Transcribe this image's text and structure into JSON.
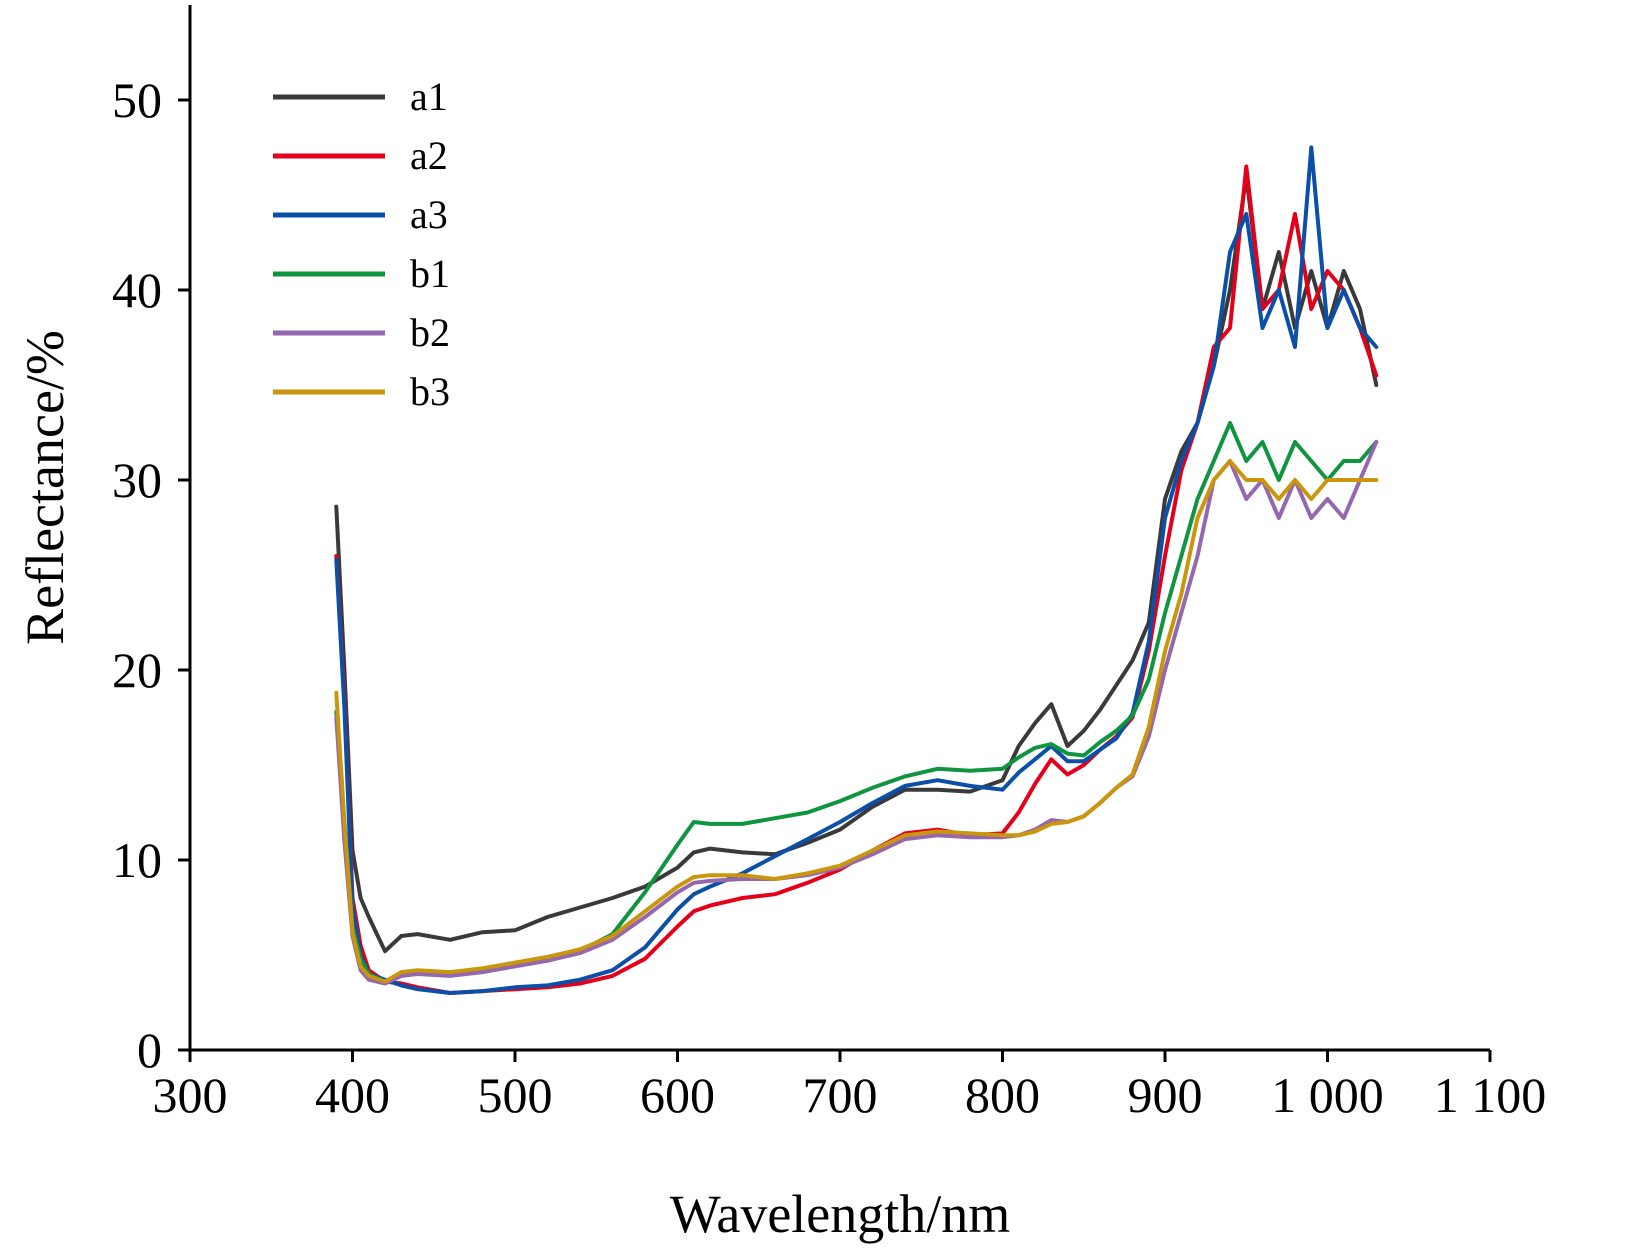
{
  "chart_data": {
    "type": "line",
    "xlabel": "Wavelength/nm",
    "ylabel": "Reflectance/%",
    "xlim": [
      300,
      1100
    ],
    "ylim": [
      0,
      55
    ],
    "x_ticks": [
      300,
      400,
      500,
      600,
      700,
      800,
      900,
      1000,
      1100
    ],
    "x_tick_labels": [
      "300",
      "400",
      "500",
      "600",
      "700",
      "800",
      "900",
      "1 000",
      "1 100"
    ],
    "y_ticks": [
      0,
      10,
      20,
      30,
      40,
      50
    ],
    "y_tick_labels": [
      "0",
      "10",
      "20",
      "30",
      "40",
      "50"
    ],
    "grid": false,
    "legend_position": "top-left",
    "x": [
      390,
      395,
      400,
      405,
      410,
      420,
      430,
      440,
      460,
      480,
      500,
      520,
      540,
      560,
      580,
      600,
      610,
      620,
      640,
      660,
      680,
      700,
      720,
      740,
      760,
      780,
      800,
      810,
      820,
      830,
      840,
      850,
      860,
      870,
      880,
      890,
      900,
      910,
      920,
      930,
      940,
      950,
      960,
      970,
      980,
      990,
      1000,
      1010,
      1020,
      1030
    ],
    "series": [
      {
        "name": "a1",
        "color": "#3a3a3a",
        "values": [
          28.6,
          20,
          10.5,
          8,
          7,
          5.2,
          6,
          6.1,
          5.8,
          6.2,
          6.3,
          7,
          7.5,
          8,
          8.6,
          9.6,
          10.4,
          10.6,
          10.4,
          10.3,
          10.9,
          11.6,
          12.8,
          13.7,
          13.7,
          13.6,
          14.2,
          16,
          17.2,
          18.2,
          16,
          16.8,
          17.9,
          19.2,
          20.5,
          22.5,
          29,
          31.5,
          33,
          36,
          40,
          46,
          39,
          42,
          38,
          41,
          38,
          41,
          39,
          35
        ]
      },
      {
        "name": "a2",
        "color": "#e4001a",
        "values": [
          26,
          18.5,
          8,
          5.5,
          4.2,
          3.6,
          3.5,
          3.3,
          3.0,
          3.1,
          3.2,
          3.3,
          3.5,
          3.9,
          4.8,
          6.5,
          7.3,
          7.6,
          8.0,
          8.2,
          8.8,
          9.5,
          10.5,
          11.4,
          11.6,
          11.3,
          11.4,
          12.5,
          14,
          15.3,
          14.5,
          15,
          15.8,
          16.5,
          17.5,
          21,
          26,
          30.5,
          33,
          37,
          38,
          46.5,
          39,
          40,
          44,
          39,
          41,
          40,
          38,
          35.5
        ]
      },
      {
        "name": "a3",
        "color": "#0a4fa8",
        "values": [
          25.8,
          18,
          7.5,
          5,
          4,
          3.7,
          3.4,
          3.2,
          3.0,
          3.1,
          3.3,
          3.4,
          3.7,
          4.2,
          5.4,
          7.4,
          8.2,
          8.6,
          9.3,
          10.2,
          11.1,
          12.0,
          13.0,
          13.9,
          14.2,
          13.9,
          13.7,
          14.6,
          15.3,
          16.0,
          15.2,
          15.2,
          15.8,
          16.4,
          17.7,
          21.5,
          28,
          31,
          33,
          36,
          42,
          44,
          38,
          40,
          37,
          47.5,
          38,
          40,
          38,
          37
        ]
      },
      {
        "name": "b1",
        "color": "#0f9540",
        "values": [
          17.8,
          12,
          6.5,
          4.8,
          4,
          3.6,
          4.0,
          4.1,
          4.0,
          4.3,
          4.5,
          4.7,
          5.2,
          6.1,
          8.3,
          10.8,
          12.0,
          11.9,
          11.9,
          12.2,
          12.5,
          13.1,
          13.8,
          14.4,
          14.8,
          14.7,
          14.8,
          15.4,
          15.9,
          16.1,
          15.6,
          15.5,
          16.2,
          16.8,
          17.6,
          19.5,
          23,
          26,
          29,
          31,
          33,
          31,
          32,
          30,
          32,
          31,
          30,
          31,
          31,
          32
        ]
      },
      {
        "name": "b2",
        "color": "#9467b0",
        "values": [
          17.5,
          11,
          6,
          4.2,
          3.7,
          3.5,
          3.9,
          4.0,
          3.9,
          4.1,
          4.4,
          4.7,
          5.1,
          5.8,
          7.0,
          8.3,
          8.8,
          8.9,
          9.0,
          9.0,
          9.2,
          9.6,
          10.3,
          11.1,
          11.3,
          11.2,
          11.2,
          11.3,
          11.6,
          12.1,
          12.0,
          12.3,
          13.0,
          13.8,
          14.4,
          16.5,
          20,
          23,
          26,
          30,
          31,
          29,
          30,
          28,
          30,
          28,
          29,
          28,
          30,
          32
        ]
      },
      {
        "name": "b3",
        "color": "#c9960c",
        "values": [
          18.8,
          12,
          6.2,
          4.4,
          3.9,
          3.6,
          4.1,
          4.2,
          4.1,
          4.3,
          4.6,
          4.9,
          5.3,
          6.0,
          7.3,
          8.6,
          9.1,
          9.2,
          9.2,
          9.0,
          9.3,
          9.7,
          10.5,
          11.3,
          11.5,
          11.4,
          11.3,
          11.3,
          11.5,
          11.9,
          12.0,
          12.3,
          13.0,
          13.8,
          14.5,
          17,
          21,
          24,
          28,
          30,
          31,
          30,
          30,
          29,
          30,
          29,
          30,
          30,
          30,
          30
        ]
      }
    ]
  }
}
